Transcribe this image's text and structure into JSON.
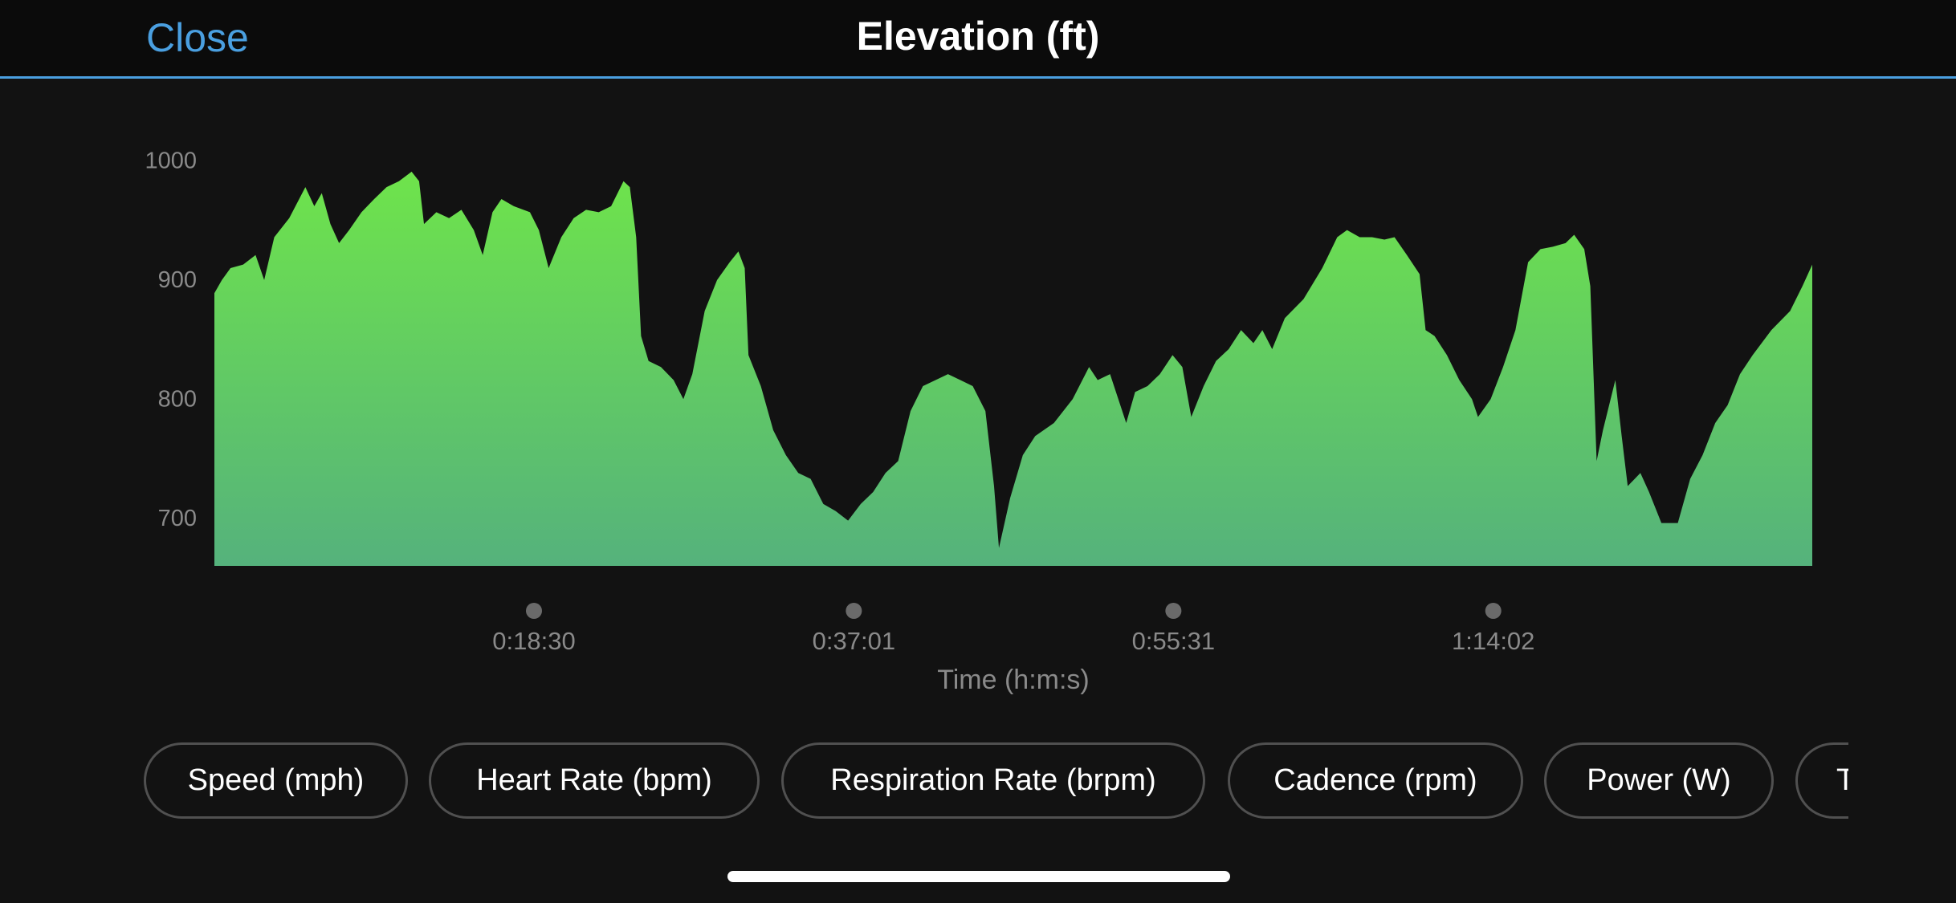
{
  "header": {
    "close": "Close",
    "title": "Elevation (ft)"
  },
  "chart_data": {
    "type": "area",
    "xlabel": "Time (h:m:s)",
    "colors": [
      "#6fe54a",
      "#55b27c"
    ],
    "xlim": [
      0,
      5550
    ],
    "xticks": [
      {
        "value": 1110,
        "label": "0:18:30"
      },
      {
        "value": 2221,
        "label": "0:37:01"
      },
      {
        "value": 3331,
        "label": "0:55:31"
      },
      {
        "value": 4442,
        "label": "1:14:02"
      }
    ],
    "ylim": [
      661,
      1000
    ],
    "yticks": [
      700,
      800,
      900,
      1000
    ],
    "x": [
      0,
      26,
      56,
      100,
      143,
      173,
      208,
      260,
      316,
      347,
      373,
      403,
      433,
      468,
      511,
      555,
      598,
      641,
      685,
      711,
      728,
      771,
      815,
      858,
      901,
      932,
      966,
      997,
      1040,
      1096,
      1127,
      1161,
      1205,
      1248,
      1291,
      1335,
      1378,
      1421,
      1443,
      1465,
      1482,
      1508,
      1551,
      1595,
      1629,
      1660,
      1703,
      1746,
      1790,
      1820,
      1842,
      1855,
      1898,
      1941,
      1985,
      2028,
      2071,
      2115,
      2158,
      2201,
      2245,
      2288,
      2331,
      2375,
      2418,
      2461,
      2505,
      2548,
      2591,
      2634,
      2678,
      2708,
      2725,
      2764,
      2808,
      2851,
      2916,
      2981,
      3038,
      3068,
      3111,
      3167,
      3198,
      3241,
      3284,
      3328,
      3362,
      3393,
      3436,
      3479,
      3523,
      3566,
      3609,
      3640,
      3674,
      3718,
      3783,
      3848,
      3900,
      3934,
      3978,
      4021,
      4064,
      4099,
      4142,
      4186,
      4207,
      4238,
      4281,
      4324,
      4368,
      4389,
      4433,
      4476,
      4519,
      4563,
      4606,
      4649,
      4693,
      4723,
      4758,
      4779,
      4801,
      4823,
      4866,
      4888,
      4909,
      4953,
      4983,
      5026,
      5083,
      5126,
      5169,
      5213,
      5256,
      5299,
      5343,
      5408,
      5473,
      5516,
      5550
    ],
    "values": [
      890,
      901,
      911,
      914,
      922,
      901,
      937,
      953,
      979,
      963,
      974,
      948,
      932,
      943,
      958,
      969,
      979,
      984,
      992,
      984,
      948,
      958,
      953,
      960,
      943,
      922,
      958,
      969,
      963,
      958,
      943,
      911,
      937,
      953,
      960,
      958,
      963,
      984,
      979,
      937,
      854,
      833,
      828,
      817,
      801,
      822,
      875,
      901,
      916,
      925,
      911,
      838,
      812,
      775,
      754,
      739,
      734,
      713,
      707,
      699,
      713,
      723,
      739,
      749,
      791,
      812,
      817,
      822,
      817,
      812,
      791,
      728,
      676,
      718,
      754,
      770,
      781,
      801,
      828,
      817,
      822,
      781,
      807,
      812,
      822,
      838,
      828,
      786,
      812,
      833,
      843,
      859,
      848,
      859,
      843,
      869,
      885,
      911,
      937,
      943,
      937,
      937,
      935,
      937,
      922,
      906,
      859,
      854,
      838,
      817,
      801,
      786,
      801,
      828,
      859,
      916,
      927,
      929,
      932,
      939,
      927,
      896,
      749,
      775,
      817,
      770,
      728,
      739,
      723,
      697,
      697,
      734,
      754,
      781,
      796,
      822,
      838,
      859,
      875,
      896,
      914
    ]
  },
  "tabs": [
    "Speed (mph)",
    "Heart Rate (bpm)",
    "Respiration Rate (brpm)",
    "Cadence (rpm)",
    "Power (W)",
    "T"
  ]
}
